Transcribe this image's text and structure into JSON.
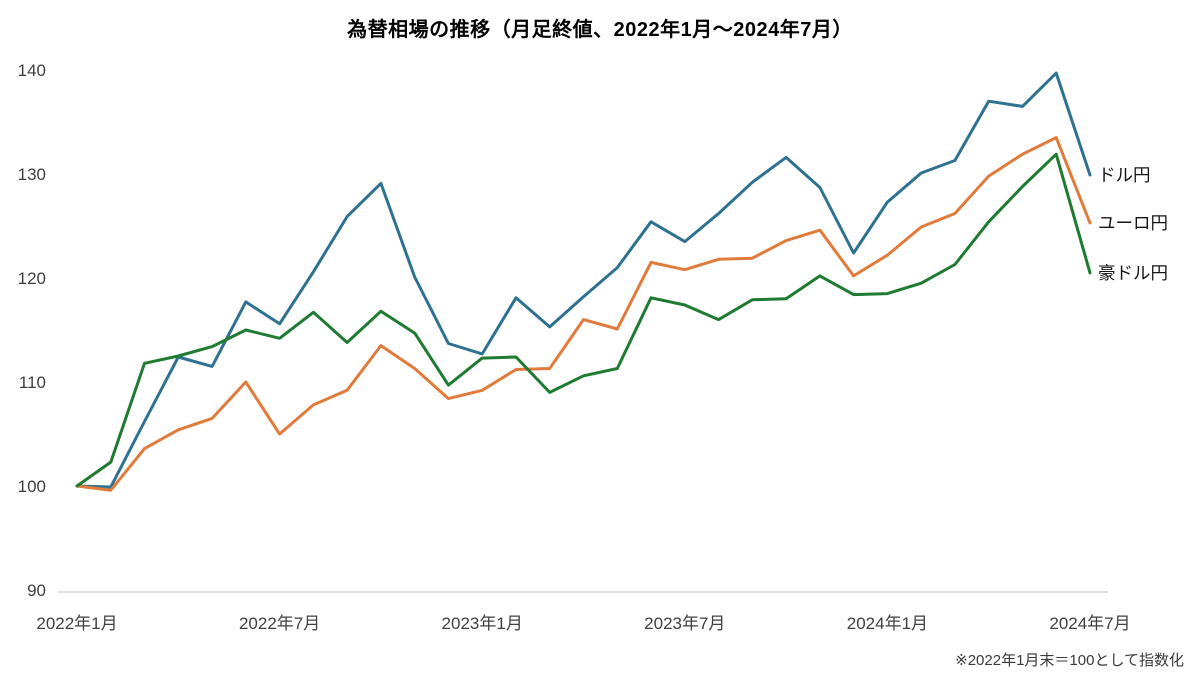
{
  "footnote": "※2022年1月末＝100として指数化",
  "chart_data": {
    "type": "line",
    "title": "為替相場の推移（月足終値、2022年1月～2024年7月）",
    "note": "※2022年1月末＝100として指数化",
    "grid": false,
    "legend_position": "line-end-labels-right",
    "ylim": [
      90,
      140
    ],
    "y_ticks": [
      90,
      100,
      110,
      120,
      130,
      140
    ],
    "x_tick_labels": [
      "2022年1月",
      "2022年7月",
      "2023年1月",
      "2023年7月",
      "2024年1月",
      "2024年7月"
    ],
    "x_tick_indices": [
      0,
      6,
      12,
      18,
      24,
      30
    ],
    "months": [
      "2022-01",
      "2022-02",
      "2022-03",
      "2022-04",
      "2022-05",
      "2022-06",
      "2022-07",
      "2022-08",
      "2022-09",
      "2022-10",
      "2022-11",
      "2022-12",
      "2023-01",
      "2023-02",
      "2023-03",
      "2023-04",
      "2023-05",
      "2023-06",
      "2023-07",
      "2023-08",
      "2023-09",
      "2023-10",
      "2023-11",
      "2023-12",
      "2024-01",
      "2024-02",
      "2024-03",
      "2024-04",
      "2024-05",
      "2024-06",
      "2024-07"
    ],
    "series": [
      {
        "key": "usd-jpy",
        "name": "ドル円",
        "color": "#2e7190",
        "values": [
          100.0,
          99.9,
          106.2,
          112.4,
          111.5,
          117.7,
          115.6,
          120.6,
          125.9,
          129.1,
          120.1,
          113.7,
          112.7,
          118.1,
          115.3,
          118.2,
          121.0,
          125.4,
          123.5,
          126.2,
          129.2,
          131.6,
          128.7,
          122.4,
          127.3,
          130.1,
          131.3,
          137.0,
          136.5,
          139.7,
          129.9
        ]
      },
      {
        "key": "eur-jpy",
        "name": "ユーロ円",
        "color": "#e07b3c",
        "values": [
          100.0,
          99.6,
          103.6,
          105.4,
          106.5,
          110.0,
          105.0,
          107.8,
          109.2,
          113.5,
          111.3,
          108.4,
          109.2,
          111.2,
          111.3,
          116.0,
          115.1,
          121.5,
          120.8,
          121.8,
          121.9,
          123.6,
          124.6,
          120.2,
          122.2,
          124.9,
          126.2,
          129.8,
          131.9,
          133.5,
          125.3
        ]
      },
      {
        "key": "aud-jpy",
        "name": "豪ドル円",
        "color": "#1f7a32",
        "values": [
          100.0,
          102.3,
          111.8,
          112.5,
          113.4,
          115.0,
          114.2,
          116.7,
          113.8,
          116.8,
          114.7,
          109.7,
          112.3,
          112.4,
          109.0,
          110.6,
          111.3,
          118.1,
          117.4,
          116.0,
          117.9,
          118.0,
          120.2,
          118.4,
          118.5,
          119.5,
          121.3,
          125.4,
          128.8,
          131.9,
          120.5
        ]
      }
    ],
    "axis_line_color": "#d9d9d9",
    "tick_label_color": "#404040"
  }
}
